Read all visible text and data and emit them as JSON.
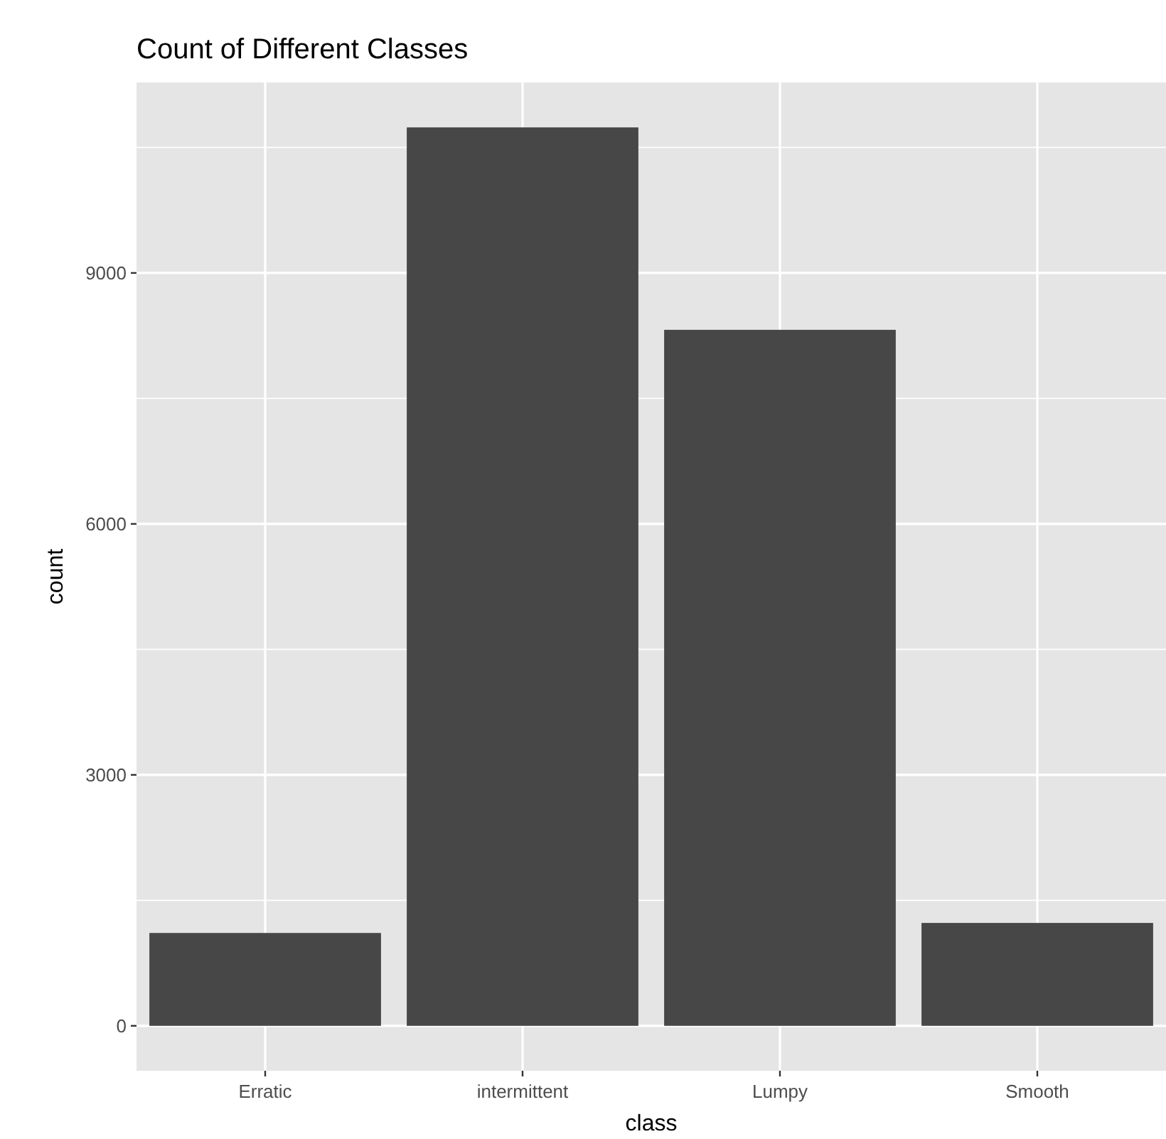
{
  "chart_data": {
    "type": "bar",
    "title": "Count of Different Classes",
    "xlabel": "class",
    "ylabel": "count",
    "categories": [
      "Erratic",
      "intermittent",
      "Lumpy",
      "Smooth"
    ],
    "values": [
      1110,
      10740,
      8320,
      1230
    ],
    "color": "#474747",
    "ylim": [
      -537,
      11277
    ],
    "yticks": [
      0,
      {
        "value": 1500,
        "label": null
      },
      3000,
      {
        "value": 4500,
        "label": null
      },
      6000,
      {
        "value": 7500,
        "label": null
      },
      9000,
      {
        "value": 10500,
        "label": null
      }
    ],
    "grid": true
  }
}
